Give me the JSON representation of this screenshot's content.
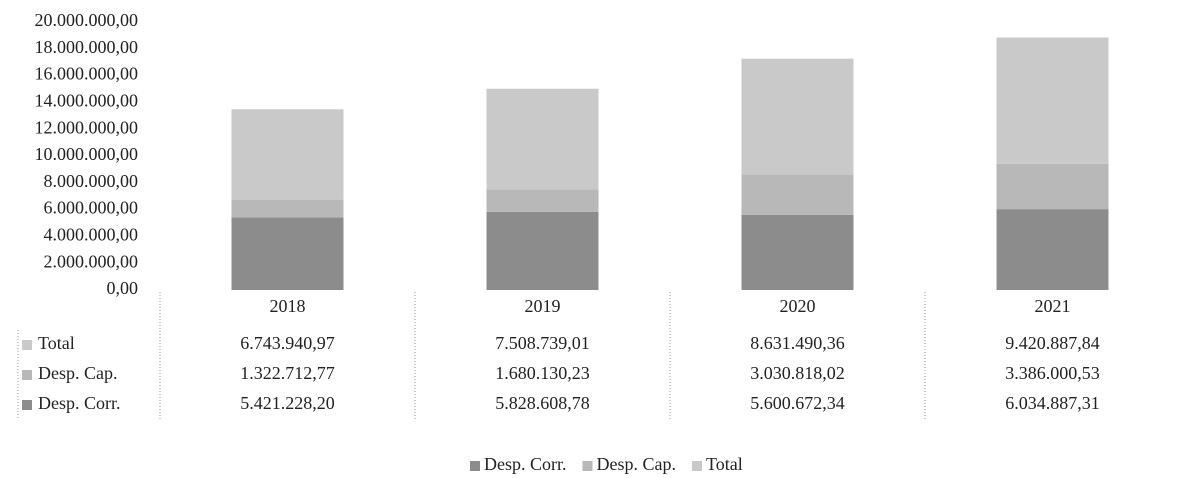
{
  "chart_data": {
    "type": "stacked_bar",
    "categories": [
      "2018",
      "2019",
      "2020",
      "2021"
    ],
    "series": [
      {
        "name": "Desp. Corr.",
        "color": "#8c8c8c",
        "values": [
          5421228.2,
          5828608.78,
          5600672.34,
          6034887.31
        ],
        "value_labels": [
          "5.421.228,20",
          "5.828.608,78",
          "5.600.672,34",
          "6.034.887,31"
        ]
      },
      {
        "name": "Desp. Cap.",
        "color": "#b8b8b8",
        "values": [
          1322712.77,
          1680130.23,
          3030818.02,
          3386000.53
        ],
        "value_labels": [
          "1.322.712,77",
          "1.680.130,23",
          "3.030.818,02",
          "3.386.000,53"
        ]
      },
      {
        "name": "Total",
        "color": "#c9c9c9",
        "values": [
          6743940.97,
          7508739.01,
          8631490.36,
          9420887.84
        ],
        "value_labels": [
          "6.743.940,97",
          "7.508.739,01",
          "8.631.490,36",
          "9.420.887,84"
        ]
      }
    ],
    "ylim": [
      0,
      20000000
    ],
    "yticks": [
      {
        "value": 0,
        "label": "0,00"
      },
      {
        "value": 2000000,
        "label": "2.000.000,00"
      },
      {
        "value": 4000000,
        "label": "4.000.000,00"
      },
      {
        "value": 6000000,
        "label": "6.000.000,00"
      },
      {
        "value": 8000000,
        "label": "8.000.000,00"
      },
      {
        "value": 10000000,
        "label": "10.000.000,00"
      },
      {
        "value": 12000000,
        "label": "12.000.000,00"
      },
      {
        "value": 14000000,
        "label": "14.000.000,00"
      },
      {
        "value": 16000000,
        "label": "16.000.000,00"
      },
      {
        "value": 18000000,
        "label": "18.000.000,00"
      },
      {
        "value": 20000000,
        "label": "20.000.000,00"
      }
    ],
    "grid": false,
    "legend": "bottom"
  }
}
